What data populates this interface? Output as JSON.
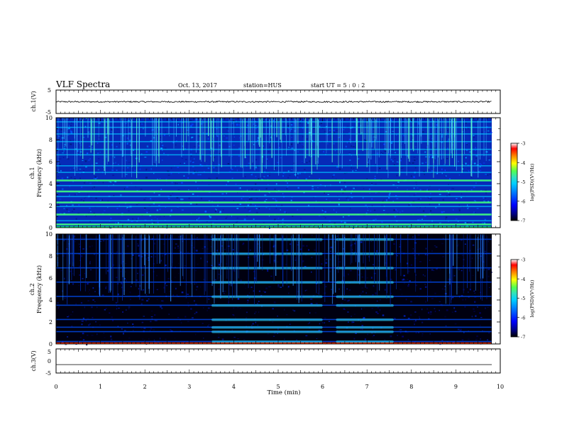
{
  "header": {
    "title": "VLF Spectra",
    "date": "Oct. 13, 2017",
    "station": "station=HUS",
    "start": "start  UT  =   5 : 0  : 2"
  },
  "colors": {
    "background": "#ffffff",
    "trace": "#000000",
    "colorbar_stops": [
      "#000000",
      "#00007a",
      "#0000ff",
      "#0070ff",
      "#00d0ff",
      "#30e0c0",
      "#50ff50",
      "#ffff00",
      "#ff8000",
      "#ff0000",
      "#ffffff"
    ]
  },
  "chart_data": [
    {
      "type": "line",
      "name": "ch1-waveform",
      "ylabel": "ch.1(V)",
      "ylim": [
        -5,
        5
      ],
      "y_ticks": [
        "5",
        "-5"
      ],
      "xlim": [
        0,
        10
      ],
      "approx_level_V": 0,
      "approx_noise_amplitude_V": 0.3
    },
    {
      "type": "heatmap",
      "name": "ch1-spectrogram",
      "ylabel": "ch.1\nFrequency (kHz)",
      "ylim": [
        0,
        10
      ],
      "y_ticks": [
        "0",
        "2",
        "4",
        "6",
        "8",
        "10"
      ],
      "xlim": [
        0,
        10
      ],
      "colorbar": {
        "label": "log(PSD)(V²/Hz)",
        "range": [
          -7,
          -3
        ],
        "ticks": [
          "-3",
          "-4",
          "-5",
          "-6",
          "-7"
        ]
      },
      "bands_kHz": [
        0.3,
        0.6,
        1.2,
        1.9,
        2.3,
        2.8,
        3.3,
        3.8,
        4.3,
        5.0,
        5.6,
        6.6,
        7.1,
        7.8,
        8.5,
        9.1,
        9.6
      ],
      "bright_bands_kHz": [
        2.3,
        4.3,
        3.3,
        1.2,
        0.3
      ]
    },
    {
      "type": "heatmap",
      "name": "ch2-spectrogram",
      "ylabel": "ch.2\nFrequency (kHz)",
      "ylim": [
        0,
        10
      ],
      "y_ticks": [
        "0",
        "2",
        "4",
        "6",
        "8",
        "10"
      ],
      "xlim": [
        0,
        10
      ],
      "colorbar": {
        "label": "log(PSD)(V²/Hz)",
        "range": [
          -7,
          -3
        ],
        "ticks": [
          "-3",
          "-4",
          "-5",
          "-6",
          "-7"
        ]
      },
      "bands_kHz": [
        0.2,
        1.1,
        1.5,
        2.2,
        3.5,
        4.3,
        5.6,
        6.9,
        8.2,
        9.5
      ],
      "bright_intervals_min": [
        [
          3.5,
          6.0
        ],
        [
          6.3,
          7.6
        ]
      ]
    },
    {
      "type": "line",
      "name": "ch3-waveform",
      "ylabel": "ch.3(V)",
      "ylim": [
        -5,
        5
      ],
      "y_ticks": [
        "5",
        "0",
        "-5"
      ],
      "xlim": [
        0,
        10
      ],
      "approx_level_V": -1.5
    }
  ],
  "xaxis": {
    "label": "Time  (min)",
    "ticks": [
      "0",
      "1",
      "2",
      "3",
      "4",
      "5",
      "6",
      "7",
      "8",
      "9",
      "10"
    ]
  }
}
